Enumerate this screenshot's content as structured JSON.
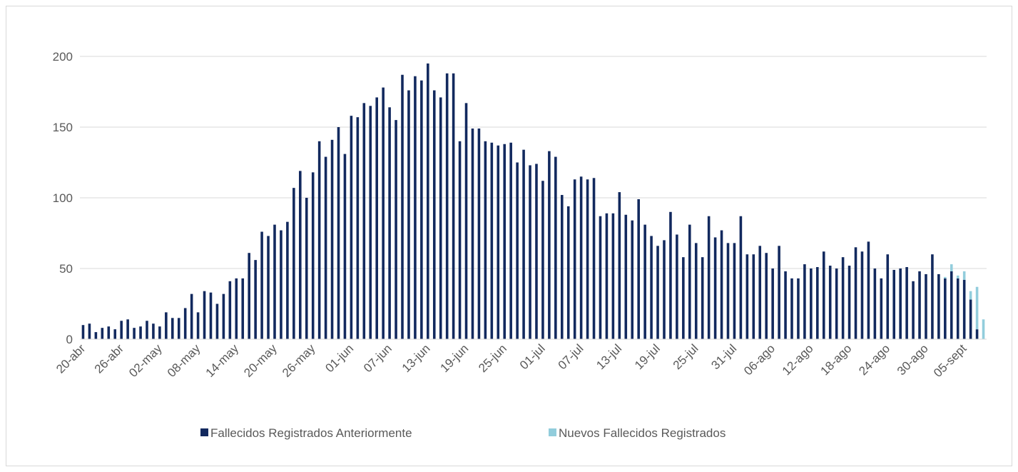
{
  "chart_data": {
    "type": "bar",
    "stacked": true,
    "categories": [
      "20-abr",
      null,
      null,
      null,
      null,
      null,
      "26-abr",
      null,
      null,
      null,
      null,
      null,
      "02-may",
      null,
      null,
      null,
      null,
      null,
      "08-may",
      null,
      null,
      null,
      null,
      null,
      "14-may",
      null,
      null,
      null,
      null,
      null,
      "20-may",
      null,
      null,
      null,
      null,
      null,
      "26-may",
      null,
      null,
      null,
      null,
      null,
      "01-jun",
      null,
      null,
      null,
      null,
      null,
      "07-jun",
      null,
      null,
      null,
      null,
      null,
      "13-jun",
      null,
      null,
      null,
      null,
      null,
      "19-jun",
      null,
      null,
      null,
      null,
      null,
      "25-jun",
      null,
      null,
      null,
      null,
      null,
      "01-jul",
      null,
      null,
      null,
      null,
      null,
      "07-jul",
      null,
      null,
      null,
      null,
      null,
      "13-jul",
      null,
      null,
      null,
      null,
      null,
      "19-jul",
      null,
      null,
      null,
      null,
      null,
      "25-jul",
      null,
      null,
      null,
      null,
      null,
      "31-jul",
      null,
      null,
      null,
      null,
      null,
      "06-ago",
      null,
      null,
      null,
      null,
      null,
      "12-ago",
      null,
      null,
      null,
      null,
      null,
      "18-ago",
      null,
      null,
      null,
      null,
      null,
      "24-ago",
      null,
      null,
      null,
      null,
      null,
      "30-ago",
      null,
      null,
      null,
      null,
      null,
      "05-sept",
      null,
      null,
      null
    ],
    "series": [
      {
        "name": "Fallecidos Registrados Anteriormente",
        "color": "#12295e",
        "values": [
          10,
          11,
          5,
          8,
          9,
          7,
          13,
          14,
          8,
          9,
          13,
          11,
          9,
          19,
          15,
          15,
          22,
          32,
          19,
          34,
          33,
          25,
          32,
          41,
          43,
          43,
          61,
          56,
          76,
          73,
          81,
          77,
          83,
          107,
          119,
          100,
          118,
          140,
          129,
          141,
          150,
          131,
          158,
          157,
          167,
          165,
          171,
          178,
          164,
          155,
          187,
          176,
          186,
          183,
          195,
          176,
          171,
          188,
          188,
          140,
          167,
          149,
          149,
          140,
          139,
          137,
          138,
          139,
          125,
          134,
          123,
          124,
          112,
          133,
          129,
          102,
          94,
          113,
          115,
          113,
          114,
          87,
          89,
          89,
          104,
          88,
          84,
          99,
          81,
          73,
          66,
          70,
          90,
          74,
          58,
          81,
          68,
          58,
          87,
          72,
          77,
          68,
          68,
          87,
          60,
          60,
          66,
          61,
          50,
          66,
          48,
          43,
          43,
          53,
          50,
          51,
          62,
          52,
          50,
          58,
          52,
          65,
          62,
          69,
          50,
          43,
          60,
          49,
          50,
          51,
          41,
          48,
          46,
          60,
          46,
          43,
          48,
          43,
          42,
          28,
          7,
          0
        ]
      },
      {
        "name": "Nuevos Fallecidos Registrados",
        "color": "#92cddc",
        "values": [
          0,
          0,
          0,
          0,
          0,
          0,
          0,
          0,
          0,
          0,
          0,
          0,
          0,
          0,
          0,
          0,
          0,
          0,
          0,
          0,
          0,
          0,
          0,
          0,
          0,
          0,
          0,
          0,
          0,
          0,
          0,
          0,
          0,
          0,
          0,
          0,
          0,
          0,
          0,
          0,
          0,
          0,
          0,
          0,
          0,
          0,
          0,
          0,
          0,
          0,
          0,
          0,
          0,
          0,
          0,
          0,
          0,
          0,
          0,
          0,
          0,
          0,
          0,
          0,
          0,
          0,
          0,
          0,
          0,
          0,
          0,
          0,
          0,
          0,
          0,
          0,
          0,
          0,
          0,
          0,
          0,
          0,
          0,
          0,
          0,
          0,
          0,
          0,
          0,
          0,
          0,
          0,
          0,
          0,
          0,
          0,
          0,
          0,
          0,
          0,
          0,
          0,
          0,
          0,
          0,
          0,
          0,
          0,
          0,
          0,
          0,
          0,
          0,
          0,
          0,
          0,
          0,
          0,
          0,
          0,
          0,
          0,
          0,
          0,
          0,
          0,
          0,
          0,
          0,
          0,
          0,
          0,
          0,
          0,
          0,
          1,
          5,
          2,
          6,
          6,
          30,
          14
        ]
      }
    ],
    "ylim": [
      0,
      200
    ],
    "yticks": [
      0,
      50,
      100,
      150,
      200
    ],
    "grid": true,
    "legend": "bottom"
  }
}
